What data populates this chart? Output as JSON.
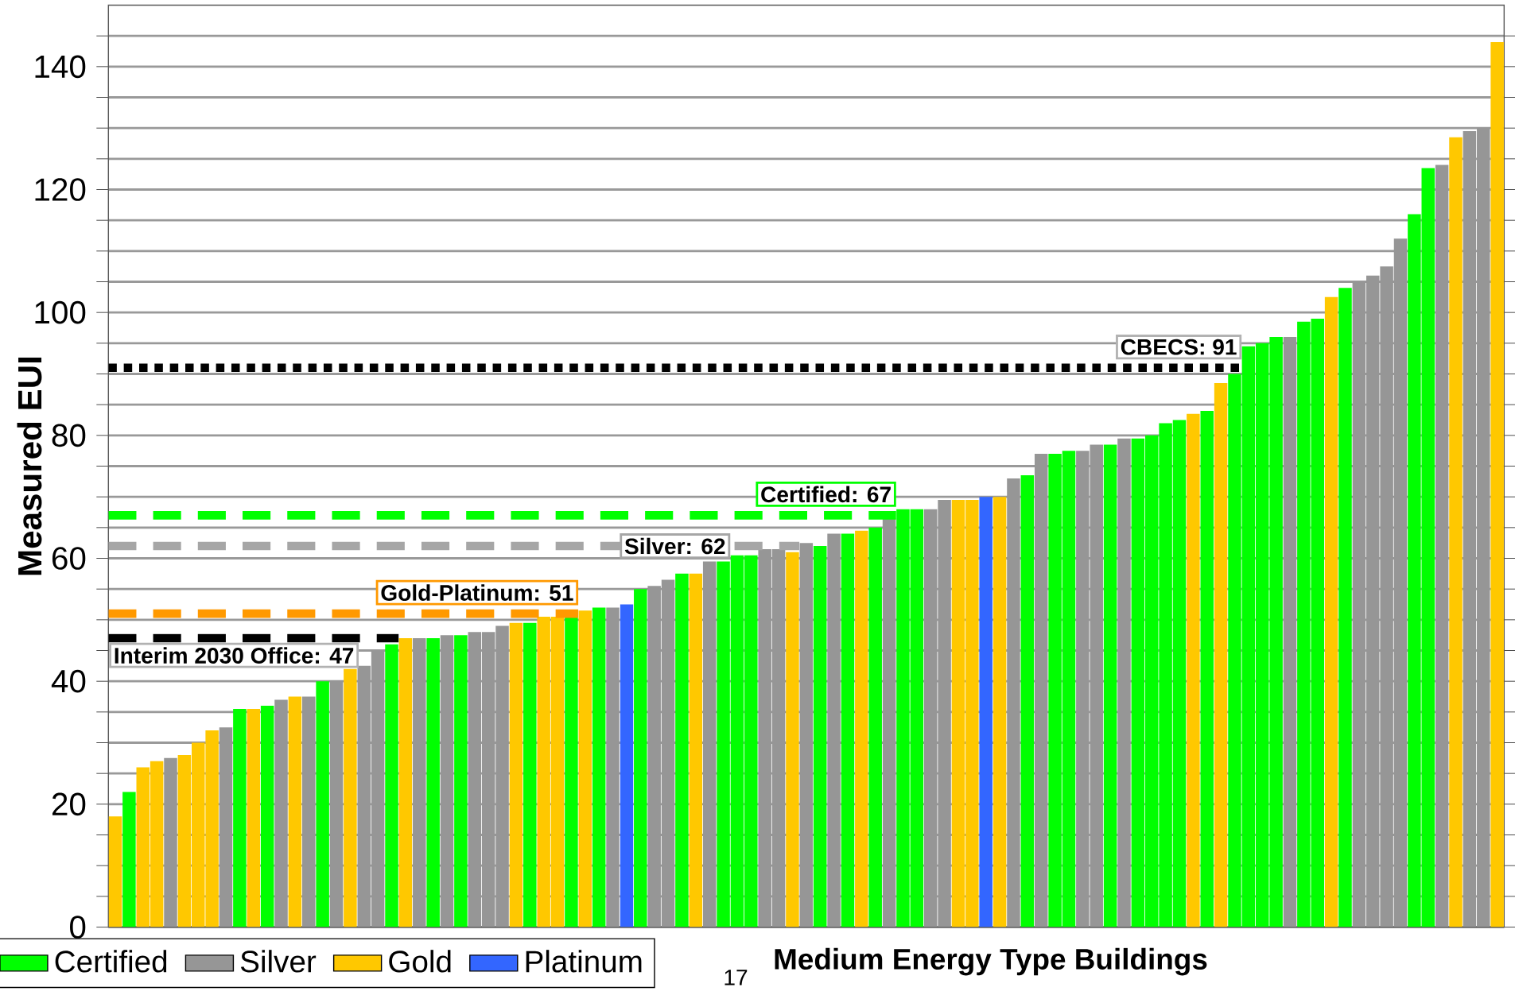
{
  "chart_data": {
    "type": "bar",
    "xlabel": "Medium Energy Type Buildings",
    "ylabel": "Measured EUI",
    "annotations": [
      "17"
    ],
    "categories": [
      null,
      null,
      null,
      null,
      null,
      null,
      null,
      null,
      null,
      null,
      null,
      null,
      null,
      null,
      null,
      null,
      null,
      null,
      null,
      null,
      null,
      null,
      null,
      null,
      null,
      null,
      null,
      null,
      null,
      null,
      null,
      null,
      null,
      null,
      null,
      null,
      null,
      null,
      null,
      null,
      null,
      null,
      null,
      null,
      null,
      null,
      null,
      null,
      null,
      null,
      null,
      null,
      null,
      null,
      null,
      null,
      null,
      null,
      null,
      null,
      null,
      null,
      null,
      null,
      null,
      null,
      null,
      null,
      null,
      null,
      null,
      null,
      null,
      null,
      null,
      null,
      null,
      null,
      null,
      null,
      null,
      null,
      null,
      null,
      null,
      null,
      null,
      null,
      null,
      null,
      null,
      null,
      null,
      null,
      null,
      null,
      null,
      null,
      null,
      null,
      null
    ],
    "series": [
      {
        "name": "Certified",
        "color": "#00ff00",
        "values": [
          null,
          22,
          null,
          null,
          null,
          null,
          null,
          null,
          null,
          35.5,
          null,
          36,
          null,
          null,
          null,
          40,
          null,
          null,
          null,
          null,
          46,
          null,
          null,
          47,
          null,
          47.5,
          null,
          null,
          null,
          null,
          49.5,
          null,
          null,
          50.5,
          null,
          52,
          null,
          null,
          55,
          null,
          null,
          57.5,
          null,
          null,
          59.5,
          60.5,
          60.5,
          null,
          null,
          null,
          null,
          62,
          null,
          64,
          null,
          65,
          null,
          68,
          68,
          null,
          null,
          null,
          null,
          null,
          null,
          null,
          73.5,
          null,
          77,
          77.5,
          null,
          null,
          78.5,
          null,
          79.5,
          80,
          82,
          82.5,
          null,
          84,
          null,
          90,
          94.5,
          95,
          96,
          null,
          98.5,
          99,
          null,
          104,
          null,
          null,
          null,
          null,
          116,
          123.5,
          null,
          null,
          null,
          null,
          null
        ]
      },
      {
        "name": "Silver",
        "color": "#969696",
        "values": [
          null,
          null,
          null,
          null,
          27.5,
          null,
          null,
          null,
          32.5,
          null,
          null,
          null,
          37,
          null,
          37.5,
          null,
          40,
          null,
          42.5,
          45,
          null,
          null,
          47,
          null,
          47.5,
          null,
          48,
          48,
          49,
          null,
          null,
          null,
          null,
          null,
          null,
          null,
          52,
          null,
          null,
          55.5,
          56.5,
          null,
          null,
          59.5,
          null,
          null,
          null,
          61.5,
          61.5,
          null,
          62.5,
          null,
          64,
          null,
          null,
          null,
          66.5,
          null,
          null,
          68,
          69.5,
          null,
          null,
          null,
          null,
          73,
          null,
          77,
          null,
          null,
          77.5,
          78.5,
          null,
          79.5,
          null,
          null,
          null,
          null,
          null,
          null,
          null,
          null,
          null,
          null,
          null,
          96,
          null,
          null,
          null,
          null,
          105,
          106,
          107.5,
          112,
          null,
          null,
          124,
          null,
          129.5,
          130,
          null
        ]
      },
      {
        "name": "Gold",
        "color": "#ffc800",
        "values": [
          18,
          null,
          26,
          27,
          null,
          28,
          30,
          32,
          null,
          null,
          35.5,
          null,
          null,
          37.5,
          null,
          null,
          null,
          42,
          null,
          null,
          null,
          47,
          null,
          null,
          null,
          null,
          null,
          null,
          null,
          49.5,
          null,
          50.5,
          50.5,
          null,
          51.5,
          null,
          null,
          null,
          null,
          null,
          null,
          null,
          57.5,
          null,
          null,
          null,
          null,
          null,
          null,
          61,
          null,
          null,
          null,
          null,
          64.5,
          null,
          null,
          null,
          null,
          null,
          null,
          69.5,
          69.5,
          null,
          70,
          null,
          null,
          null,
          null,
          null,
          null,
          null,
          null,
          null,
          null,
          null,
          null,
          null,
          83.5,
          null,
          88.5,
          null,
          null,
          null,
          null,
          null,
          null,
          null,
          102.5,
          null,
          null,
          null,
          null,
          null,
          null,
          null,
          null,
          128.5,
          null,
          null,
          144
        ]
      },
      {
        "name": "Platinum",
        "color": "#3366ff",
        "values": [
          null,
          null,
          null,
          null,
          null,
          null,
          null,
          null,
          null,
          null,
          null,
          null,
          null,
          null,
          null,
          null,
          null,
          null,
          null,
          null,
          null,
          null,
          null,
          null,
          null,
          null,
          null,
          null,
          null,
          null,
          null,
          null,
          null,
          null,
          null,
          null,
          null,
          52.5,
          null,
          null,
          null,
          null,
          null,
          null,
          null,
          null,
          null,
          null,
          null,
          null,
          null,
          null,
          null,
          null,
          null,
          null,
          null,
          null,
          null,
          null,
          null,
          null,
          null,
          70,
          null,
          null,
          null,
          null,
          null,
          null,
          null,
          null,
          null,
          null,
          null,
          null,
          null,
          null,
          null,
          null,
          null,
          null,
          null,
          null,
          null,
          null,
          null,
          null,
          null,
          null,
          null,
          null,
          null,
          null,
          null,
          null,
          null,
          null,
          null,
          null,
          null
        ]
      }
    ],
    "ylim": [
      0,
      150
    ],
    "yticks": [
      0,
      {
        "value": 5,
        "label": null
      },
      {
        "value": 10,
        "label": null
      },
      {
        "value": 15,
        "label": null
      },
      20,
      {
        "value": 25,
        "label": null
      },
      {
        "value": 30,
        "label": null
      },
      {
        "value": 35,
        "label": null
      },
      40,
      {
        "value": 45,
        "label": null
      },
      {
        "value": 50,
        "label": null
      },
      {
        "value": 55,
        "label": null
      },
      60,
      {
        "value": 65,
        "label": null
      },
      {
        "value": 70,
        "label": null
      },
      {
        "value": 75,
        "label": null
      },
      80,
      {
        "value": 85,
        "label": null
      },
      {
        "value": 90,
        "label": null
      },
      {
        "value": 95,
        "label": null
      },
      100,
      {
        "value": 105,
        "label": null
      },
      {
        "value": 110,
        "label": null
      },
      {
        "value": 115,
        "label": null
      },
      120,
      {
        "value": 125,
        "label": null
      },
      {
        "value": 130,
        "label": null
      },
      {
        "value": 135,
        "label": null
      },
      140,
      {
        "value": 145,
        "label": null
      }
    ],
    "ref_lines": [
      {
        "axis": "y",
        "value": 47,
        "label": "Interim 2030 Office: 47",
        "color": "#000000",
        "line_style": "dashed"
      },
      {
        "axis": "y",
        "value": 51,
        "label": "Gold-Platinum: 51",
        "color": "#ff9900",
        "line_style": "dashed"
      },
      {
        "axis": "y",
        "value": 62,
        "label": "Silver: 62",
        "color": "#a6a6a6",
        "line_style": "dashed"
      },
      {
        "axis": "y",
        "value": 67,
        "label": "Certified: 67",
        "color": "#00ff00",
        "line_style": "dashed"
      },
      {
        "axis": "y",
        "value": 91,
        "label": "CBECS: 91",
        "color": "#000000",
        "line_style": "dotted"
      }
    ],
    "grid": "y",
    "legend": "bottom left",
    "tick_labels": "y"
  }
}
